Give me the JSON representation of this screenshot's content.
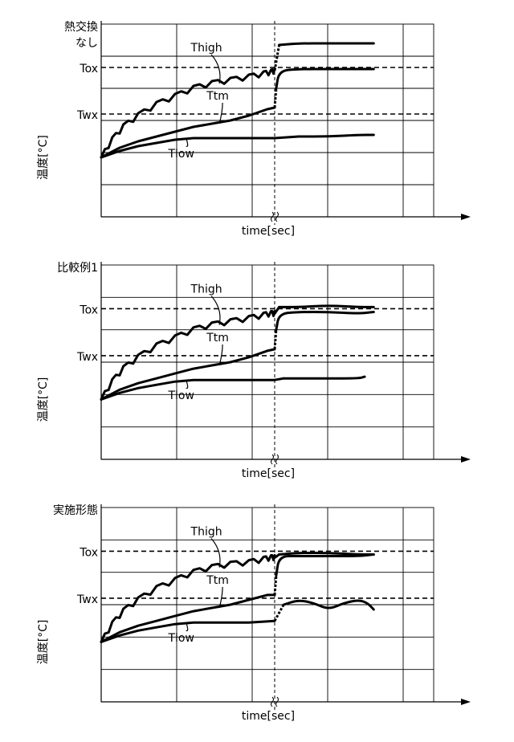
{
  "chart_data": [
    {
      "type": "line",
      "title": "熱交換\nなし",
      "title_lines": [
        "熱交換",
        "なし"
      ],
      "xlabel": "time[sec]",
      "ylabel": "温度[°C]",
      "reference_lines": [
        {
          "label": "Tox",
          "value": 73
        },
        {
          "label": "Twx",
          "value": 44
        }
      ],
      "xlim": [
        0,
        10
      ],
      "ylim": [
        -20,
        100
      ],
      "x_break": 4.7,
      "series": [
        {
          "name": "Thigh",
          "label": "Thigh",
          "points": [
            [
              0,
              17
            ],
            [
              0.3,
              28
            ],
            [
              0.6,
              36
            ],
            [
              1,
              43
            ],
            [
              1.5,
              50
            ],
            [
              2,
              55
            ],
            [
              2.5,
              60
            ],
            [
              3,
              63
            ],
            [
              3.5,
              65
            ],
            [
              4,
              67
            ],
            [
              4.4,
              69
            ],
            [
              4.6,
              70
            ],
            [
              4.7,
              71
            ],
            [
              4.85,
              87
            ],
            [
              5.5,
              88
            ],
            [
              6.5,
              88
            ],
            [
              7.5,
              88
            ],
            [
              8,
              88
            ]
          ]
        },
        {
          "name": "Ttm",
          "label": "Ttm",
          "points": [
            [
              0,
              17
            ],
            [
              0.5,
              23
            ],
            [
              1,
              27
            ],
            [
              1.5,
              30
            ],
            [
              2,
              33
            ],
            [
              2.5,
              36
            ],
            [
              3,
              38
            ],
            [
              3.5,
              40
            ],
            [
              4,
              43
            ],
            [
              4.5,
              47
            ],
            [
              4.7,
              48
            ],
            [
              4.75,
              60
            ],
            [
              4.85,
              71
            ],
            [
              5.5,
              72
            ],
            [
              6.5,
              72
            ],
            [
              7.5,
              72
            ],
            [
              8,
              72
            ]
          ]
        },
        {
          "name": "Tlow",
          "label": "Tlow",
          "points": [
            [
              0,
              17
            ],
            [
              0.5,
              21
            ],
            [
              1,
              24
            ],
            [
              1.5,
              26
            ],
            [
              2,
              28
            ],
            [
              2.5,
              29
            ],
            [
              3,
              29
            ],
            [
              4,
              29
            ],
            [
              4.7,
              29
            ],
            [
              5.5,
              30
            ],
            [
              6.5,
              30
            ],
            [
              7.5,
              31
            ],
            [
              8,
              31
            ]
          ]
        }
      ]
    },
    {
      "type": "line",
      "title": "比較例1",
      "title_lines": [
        "比較例1"
      ],
      "xlabel": "time[sec]",
      "ylabel": "温度[°C]",
      "reference_lines": [
        {
          "label": "Tox",
          "value": 73
        },
        {
          "label": "Twx",
          "value": 44
        }
      ],
      "xlim": [
        0,
        10
      ],
      "ylim": [
        -20,
        100
      ],
      "x_break": 4.7,
      "series": [
        {
          "name": "Thigh",
          "label": "Thigh",
          "points": [
            [
              0,
              17
            ],
            [
              0.3,
              28
            ],
            [
              0.6,
              36
            ],
            [
              1,
              43
            ],
            [
              1.5,
              50
            ],
            [
              2,
              55
            ],
            [
              2.5,
              60
            ],
            [
              3,
              63
            ],
            [
              3.5,
              65
            ],
            [
              4,
              67
            ],
            [
              4.4,
              69
            ],
            [
              4.6,
              70
            ],
            [
              4.7,
              70
            ],
            [
              4.85,
              74
            ],
            [
              5.5,
              74
            ],
            [
              6.5,
              75
            ],
            [
              7.5,
              74
            ],
            [
              8,
              74
            ]
          ]
        },
        {
          "name": "Ttm",
          "label": "Ttm",
          "points": [
            [
              0,
              17
            ],
            [
              0.5,
              23
            ],
            [
              1,
              27
            ],
            [
              1.5,
              30
            ],
            [
              2,
              33
            ],
            [
              2.5,
              36
            ],
            [
              3,
              38
            ],
            [
              3.5,
              40
            ],
            [
              4,
              43
            ],
            [
              4.5,
              47
            ],
            [
              4.7,
              48
            ],
            [
              4.75,
              60
            ],
            [
              4.85,
              70
            ],
            [
              5.5,
              71
            ],
            [
              6.5,
              71
            ],
            [
              7.5,
              70
            ],
            [
              8,
              71
            ]
          ]
        },
        {
          "name": "Tlow",
          "label": "Tlow",
          "points": [
            [
              0,
              17
            ],
            [
              0.5,
              21
            ],
            [
              1,
              24
            ],
            [
              1.5,
              26
            ],
            [
              2,
              28
            ],
            [
              2.5,
              29
            ],
            [
              3,
              29
            ],
            [
              4,
              29
            ],
            [
              4.7,
              29
            ],
            [
              5,
              30
            ],
            [
              5.5,
              30
            ],
            [
              6.5,
              30
            ],
            [
              7.5,
              30
            ],
            [
              7.7,
              31
            ]
          ]
        }
      ]
    },
    {
      "type": "line",
      "title": "実施形態",
      "title_lines": [
        "実施形態"
      ],
      "xlabel": "time[sec]",
      "ylabel": "温度[°C]",
      "reference_lines": [
        {
          "label": "Tox",
          "value": 73
        },
        {
          "label": "Twx",
          "value": 44
        }
      ],
      "xlim": [
        0,
        10
      ],
      "ylim": [
        -20,
        100
      ],
      "x_break": 4.7,
      "series": [
        {
          "name": "Thigh",
          "label": "Thigh",
          "points": [
            [
              0,
              17
            ],
            [
              0.3,
              28
            ],
            [
              0.6,
              36
            ],
            [
              1,
              43
            ],
            [
              1.5,
              50
            ],
            [
              2,
              55
            ],
            [
              2.5,
              60
            ],
            [
              3,
              63
            ],
            [
              3.5,
              65
            ],
            [
              4,
              66
            ],
            [
              4.4,
              68
            ],
            [
              4.6,
              69
            ],
            [
              4.7,
              69
            ],
            [
              4.85,
              71
            ],
            [
              5.5,
              72
            ],
            [
              6.5,
              72
            ],
            [
              7.5,
              71
            ],
            [
              8,
              71
            ]
          ]
        },
        {
          "name": "Ttm",
          "label": "Ttm",
          "points": [
            [
              0,
              17
            ],
            [
              0.5,
              23
            ],
            [
              1,
              27
            ],
            [
              1.5,
              30
            ],
            [
              2,
              33
            ],
            [
              2.5,
              36
            ],
            [
              3,
              38
            ],
            [
              3.5,
              40
            ],
            [
              4,
              43
            ],
            [
              4.5,
              46
            ],
            [
              4.7,
              46
            ],
            [
              4.75,
              58
            ],
            [
              4.85,
              70
            ],
            [
              5.5,
              70
            ],
            [
              6.5,
              70
            ],
            [
              7.5,
              70
            ],
            [
              8,
              71
            ]
          ]
        },
        {
          "name": "Tlow",
          "label": "Tlow",
          "points": [
            [
              0,
              17
            ],
            [
              0.5,
              21
            ],
            [
              1,
              24
            ],
            [
              1.5,
              26
            ],
            [
              2,
              28
            ],
            [
              2.5,
              29
            ],
            [
              3,
              29
            ],
            [
              4,
              29
            ],
            [
              4.7,
              30
            ],
            [
              5,
              40
            ],
            [
              5.5,
              43
            ],
            [
              6,
              41
            ],
            [
              6.5,
              37
            ],
            [
              7,
              41
            ],
            [
              7.5,
              43
            ],
            [
              7.8,
              41
            ],
            [
              8,
              37
            ]
          ]
        }
      ]
    }
  ]
}
